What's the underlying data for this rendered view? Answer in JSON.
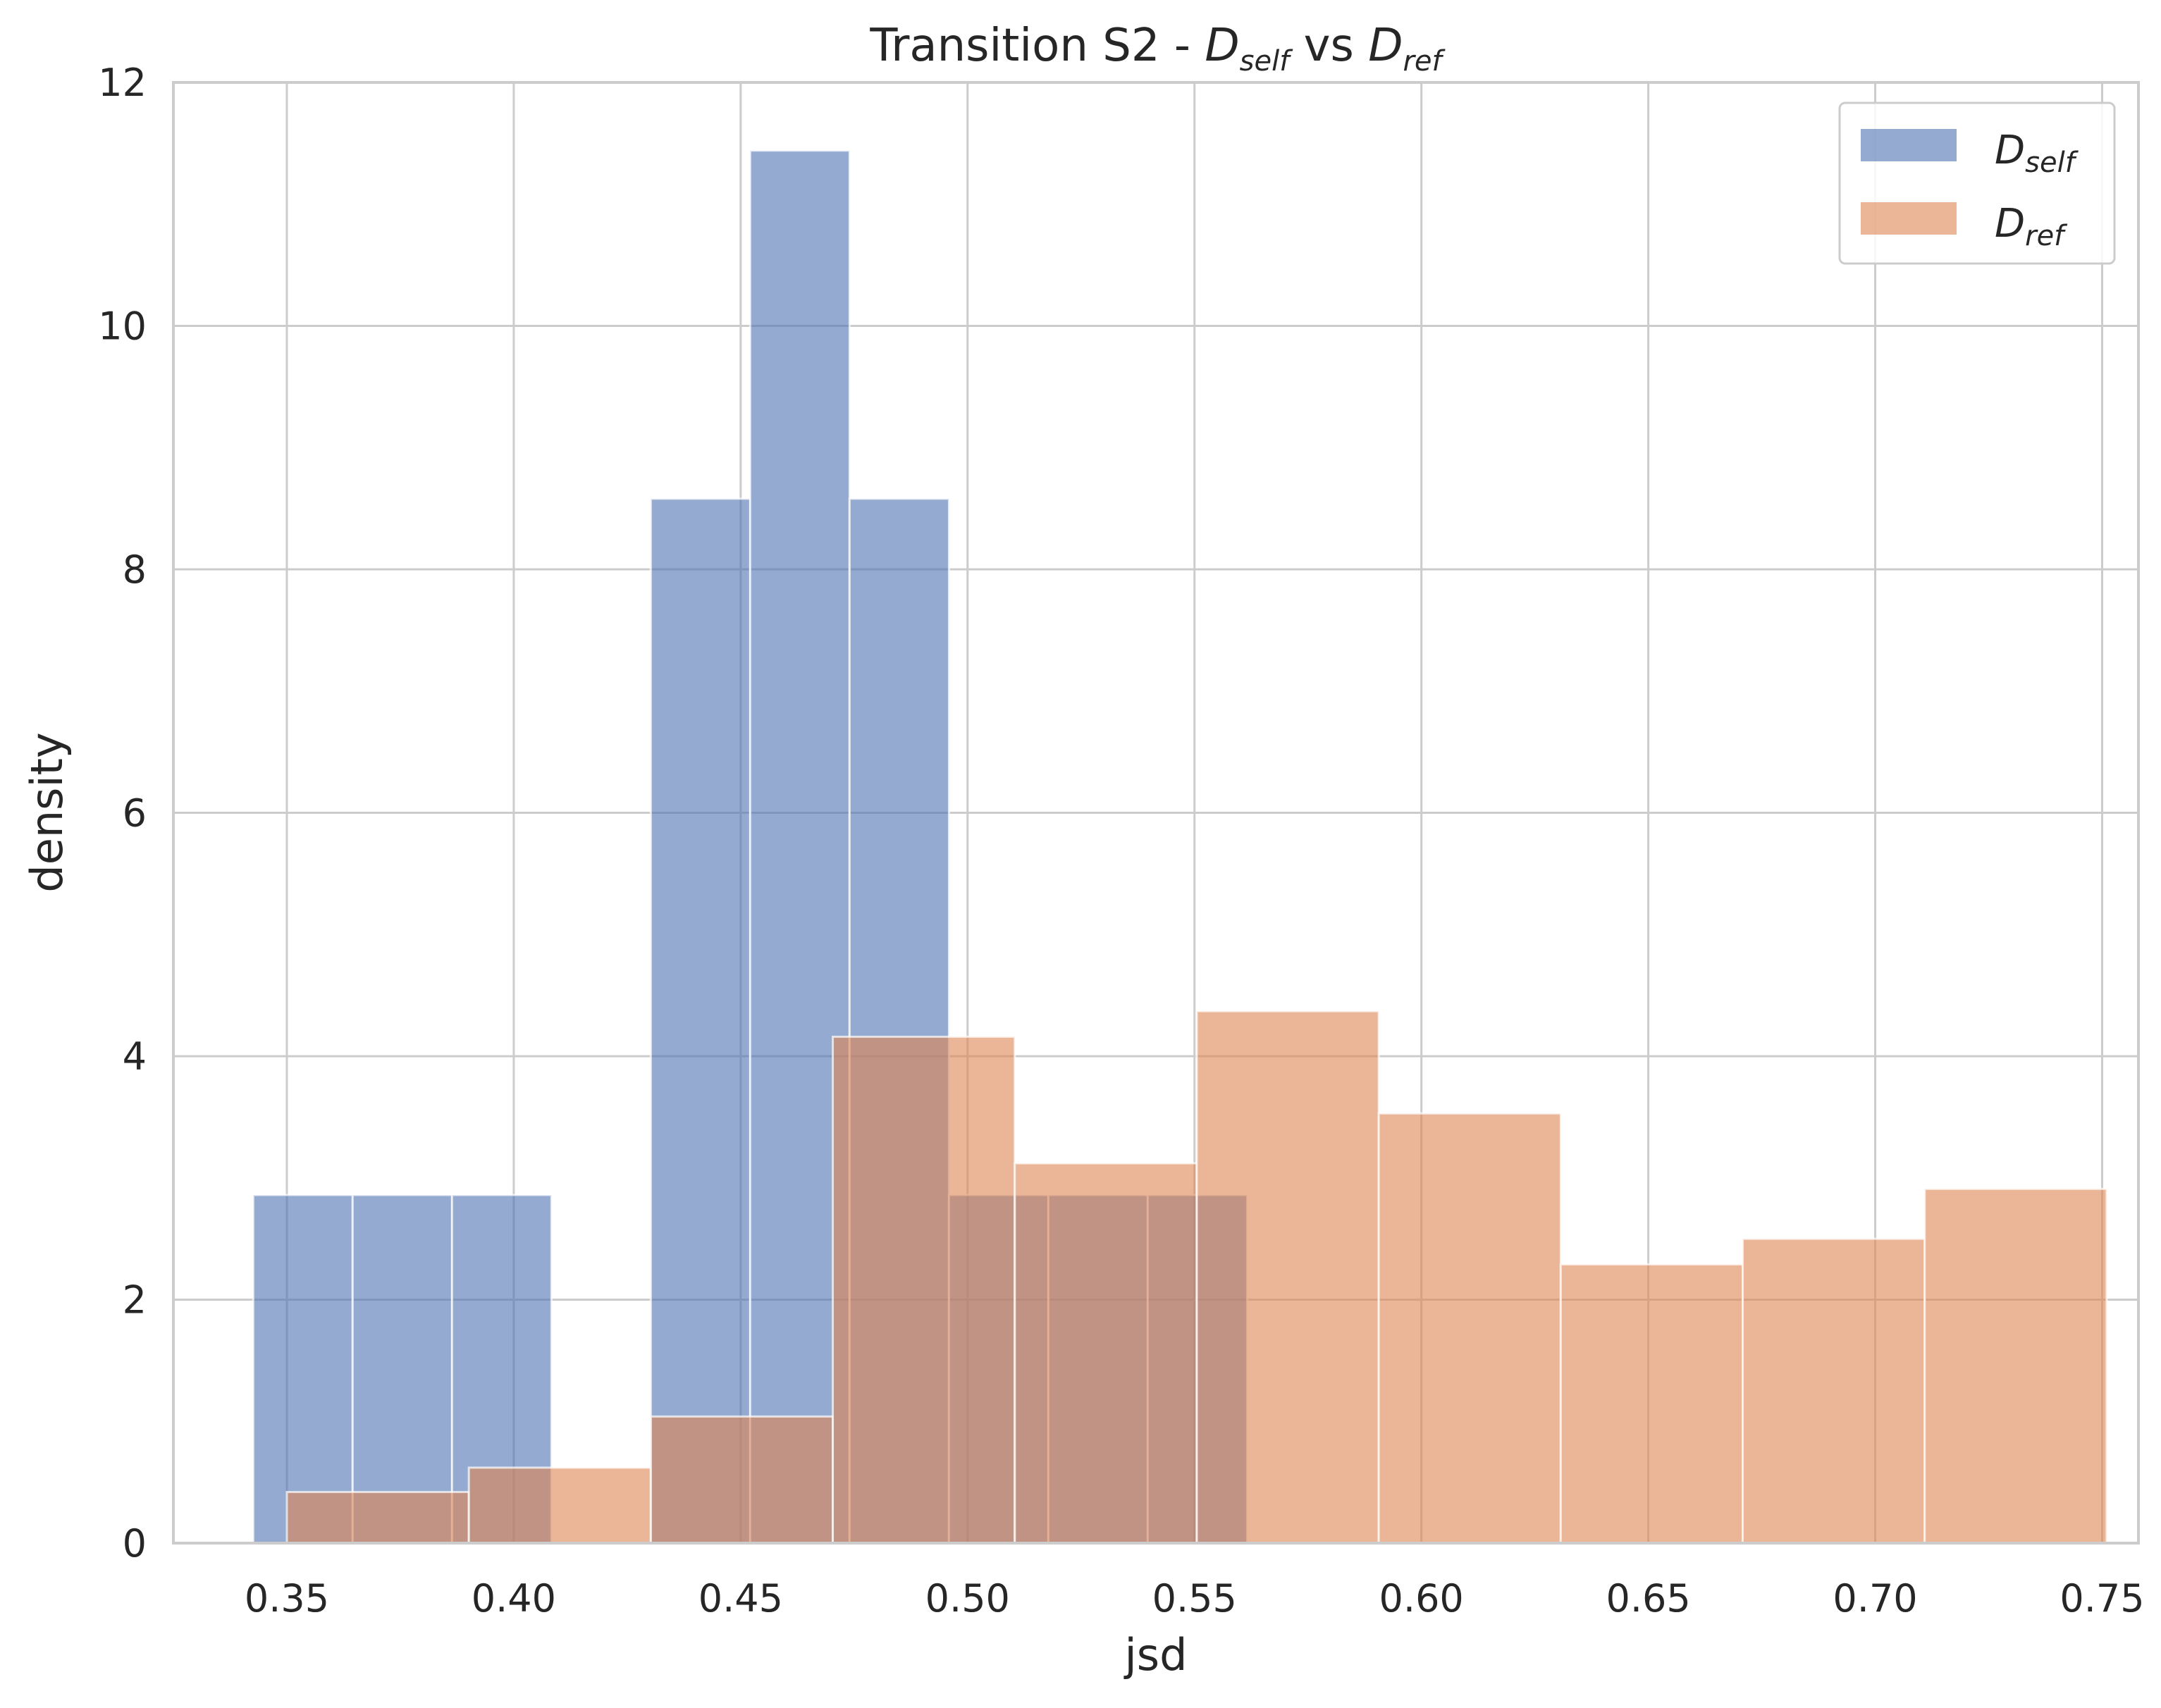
{
  "chart_data": {
    "type": "histogram",
    "title": {
      "prefix": "Transition S2 - ",
      "series_a": {
        "main": "D",
        "sub": "self"
      },
      "middle": " vs ",
      "series_b": {
        "main": "D",
        "sub": "ref"
      }
    },
    "xlabel": "jsd",
    "ylabel": "density",
    "xlim": [
      0.325,
      0.758
    ],
    "ylim": [
      0,
      12
    ],
    "xticks": [
      "0.35",
      "0.40",
      "0.45",
      "0.50",
      "0.55",
      "0.60",
      "0.65",
      "0.70",
      "0.75"
    ],
    "yticks": [
      "0",
      "2",
      "4",
      "6",
      "8",
      "10",
      "12"
    ],
    "grid": true,
    "legend_position": "top-right",
    "series": [
      {
        "legend_main": "D",
        "legend_sub": "self",
        "color": "#4c72b0",
        "opacity": 0.6,
        "bins": [
          {
            "x0": 0.3426,
            "x1": 0.3645,
            "density": 2.86
          },
          {
            "x0": 0.3645,
            "x1": 0.3864,
            "density": 2.86
          },
          {
            "x0": 0.3864,
            "x1": 0.4083,
            "density": 2.86
          },
          {
            "x0": 0.4083,
            "x1": 0.4302,
            "density": 0
          },
          {
            "x0": 0.4302,
            "x1": 0.4521,
            "density": 8.58
          },
          {
            "x0": 0.4521,
            "x1": 0.474,
            "density": 11.44
          },
          {
            "x0": 0.474,
            "x1": 0.4959,
            "density": 8.58
          },
          {
            "x0": 0.4959,
            "x1": 0.5178,
            "density": 2.86
          },
          {
            "x0": 0.5178,
            "x1": 0.5397,
            "density": 2.86
          },
          {
            "x0": 0.5397,
            "x1": 0.5616,
            "density": 2.86
          }
        ]
      },
      {
        "legend_main": "D",
        "legend_sub": "ref",
        "color": "#dd8452",
        "opacity": 0.6,
        "bins": [
          {
            "x0": 0.35,
            "x1": 0.3901,
            "density": 0.42
          },
          {
            "x0": 0.3901,
            "x1": 0.4302,
            "density": 0.62
          },
          {
            "x0": 0.4302,
            "x1": 0.4703,
            "density": 1.04
          },
          {
            "x0": 0.4703,
            "x1": 0.5104,
            "density": 4.16
          },
          {
            "x0": 0.5104,
            "x1": 0.5505,
            "density": 3.12
          },
          {
            "x0": 0.5505,
            "x1": 0.5906,
            "density": 4.37
          },
          {
            "x0": 0.5906,
            "x1": 0.6307,
            "density": 3.53
          },
          {
            "x0": 0.6307,
            "x1": 0.6708,
            "density": 2.29
          },
          {
            "x0": 0.6708,
            "x1": 0.7109,
            "density": 2.5
          },
          {
            "x0": 0.7109,
            "x1": 0.751,
            "density": 2.91
          }
        ]
      }
    ]
  }
}
